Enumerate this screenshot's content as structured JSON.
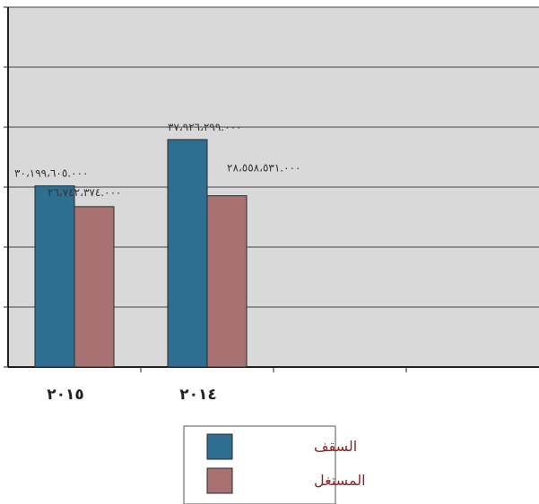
{
  "chart_data": {
    "type": "bar",
    "categories": [
      "٢٠١٥",
      "٢٠١٤"
    ],
    "series": [
      {
        "name": "السقف",
        "color": "#2e6e91",
        "values": [
          30199605000,
          37926299000
        ],
        "labels": [
          "٣٠،١٩٩،٦٠٥.٠٠٠",
          "٣٧،٩٢٦،٢٩٩.٠٠٠"
        ]
      },
      {
        "name": "المستغل",
        "color": "#a87272",
        "values": [
          26742374000,
          28558531000
        ],
        "labels": [
          "٢٦،٧٤٢،٣٧٤.٠٠٠",
          "٢٨،٥٥٨،٥٣١.٠٠٠"
        ]
      }
    ],
    "ylim": [
      0,
      60000000000
    ],
    "category_slots": 4,
    "grid": true,
    "plot_background": "#d9d9d9",
    "legend_position": "bottom"
  }
}
